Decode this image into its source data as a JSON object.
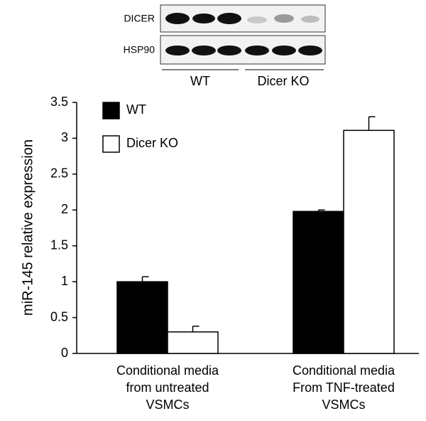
{
  "blot": {
    "rows": [
      "DICER",
      "HSP90"
    ],
    "groups": [
      "WT",
      "Dicer KO"
    ]
  },
  "chart_data": {
    "type": "bar",
    "y_label": "miR-145 relative expression",
    "categories": [
      [
        "Conditional media",
        "from untreated",
        "VSMCs"
      ],
      [
        "Conditional media",
        "From TNF-treated",
        "VSMCs"
      ]
    ],
    "series": [
      {
        "name": "WT",
        "color": "#000000",
        "values": [
          1.0,
          1.98
        ],
        "errors": [
          0.07,
          0.02
        ]
      },
      {
        "name": "Dicer KO",
        "color": "#ffffff",
        "values": [
          0.3,
          3.11
        ],
        "errors": [
          0.08,
          0.19
        ]
      }
    ],
    "ylim": [
      0,
      3.5
    ],
    "yticks": [
      0,
      0.5,
      1,
      1.5,
      2,
      2.5,
      3,
      3.5
    ],
    "grid": false,
    "legend": "top-left"
  }
}
